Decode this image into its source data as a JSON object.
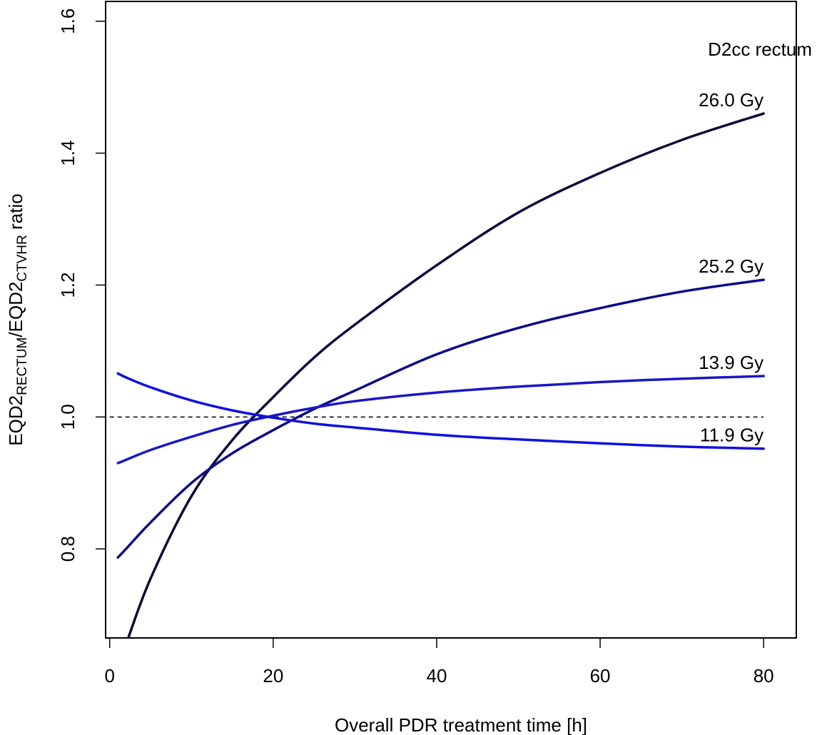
{
  "chart_data": {
    "type": "line",
    "xlabel": "Overall PDR treatment time [h]",
    "ylabel": {
      "parts": [
        "EQD2",
        "RECTUM",
        "/EQD2",
        "CTVHR",
        " ratio"
      ]
    },
    "annotation": "D2cc rectum",
    "xlim": [
      -0.5,
      84
    ],
    "ylim": [
      0.665,
      1.63
    ],
    "xticks": [
      0,
      20,
      40,
      60,
      80
    ],
    "yticks": [
      0.8,
      1.0,
      1.2,
      1.4,
      1.6
    ],
    "xtick_labels": [
      "0",
      "20",
      "40",
      "60",
      "80"
    ],
    "ytick_labels": [
      "0.8",
      "1.0",
      "1.2",
      "1.4",
      "1.6"
    ],
    "grid": false,
    "reference_line": {
      "y": 1.0,
      "style": "dashed"
    },
    "x": [
      1,
      2,
      5,
      10,
      15,
      20,
      25,
      30,
      40,
      50,
      60,
      70,
      80
    ],
    "series": [
      {
        "name": "26.0 Gy",
        "color": "#0a0a3a",
        "values": [
          0.615,
          0.655,
          0.755,
          0.88,
          0.965,
          1.03,
          1.09,
          1.14,
          1.23,
          1.31,
          1.37,
          1.42,
          1.46
        ]
      },
      {
        "name": "25.2 Gy",
        "color": "#0a0a8a",
        "values": [
          0.787,
          0.8,
          0.84,
          0.9,
          0.945,
          0.98,
          1.012,
          1.04,
          1.095,
          1.135,
          1.165,
          1.19,
          1.208
        ]
      },
      {
        "name": "13.9 Gy",
        "color": "#1818c8",
        "values": [
          0.93,
          0.935,
          0.95,
          0.97,
          0.988,
          1.002,
          1.014,
          1.024,
          1.037,
          1.046,
          1.053,
          1.058,
          1.062
        ]
      },
      {
        "name": "11.9 Gy",
        "color": "#1010e0",
        "values": [
          1.066,
          1.06,
          1.045,
          1.025,
          1.01,
          0.999,
          0.99,
          0.984,
          0.973,
          0.966,
          0.96,
          0.955,
          0.952
        ]
      }
    ]
  }
}
